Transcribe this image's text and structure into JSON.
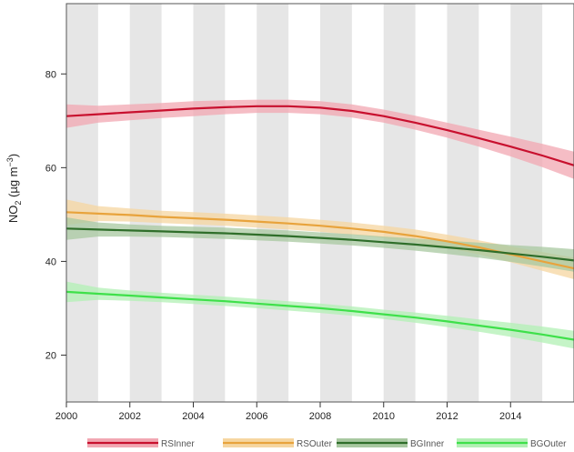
{
  "chart_data": {
    "type": "line",
    "title": "",
    "xlabel": "",
    "ylabel": {
      "main": "NO",
      "sub": "2",
      "unit_open": " (µg m",
      "unit_sup": "−3",
      "unit_close": ")"
    },
    "xlim": [
      2000,
      2016
    ],
    "ylim": [
      10,
      95
    ],
    "x_ticks": [
      2000,
      2002,
      2004,
      2006,
      2008,
      2010,
      2012,
      2014
    ],
    "x_tick_labels": [
      "2000",
      "2002",
      "2004",
      "2006",
      "2008",
      "2010",
      "2012",
      "2014"
    ],
    "y_ticks": [
      20,
      40,
      60,
      80
    ],
    "y_tick_labels": [
      "20",
      "40",
      "60",
      "80"
    ],
    "shaded_year_bands": [
      [
        2000,
        2001
      ],
      [
        2002,
        2003
      ],
      [
        2004,
        2005
      ],
      [
        2006,
        2007
      ],
      [
        2008,
        2009
      ],
      [
        2010,
        2011
      ],
      [
        2012,
        2013
      ],
      [
        2014,
        2015
      ]
    ],
    "grid": false,
    "legend_position": "bottom",
    "x": [
      2000,
      2001,
      2002,
      2003,
      2004,
      2005,
      2006,
      2007,
      2008,
      2009,
      2010,
      2011,
      2012,
      2013,
      2014,
      2015,
      2016
    ],
    "series": [
      {
        "name": "RSInner",
        "color": "#c8102e",
        "band_color": "#f2a7b2",
        "values": [
          71,
          71.4,
          71.8,
          72.2,
          72.6,
          72.9,
          73.1,
          73.1,
          72.8,
          72.1,
          71.0,
          69.6,
          68.0,
          66.3,
          64.5,
          62.6,
          60.5
        ],
        "lower": [
          68.5,
          69.6,
          70.1,
          70.6,
          71.0,
          71.4,
          71.7,
          71.7,
          71.4,
          70.7,
          69.6,
          68.1,
          66.4,
          64.5,
          62.4,
          60.1,
          57.6
        ],
        "upper": [
          73.5,
          73.2,
          73.5,
          73.8,
          74.2,
          74.4,
          74.5,
          74.5,
          74.2,
          73.5,
          72.4,
          71.1,
          69.6,
          68.1,
          66.6,
          65.1,
          63.4
        ]
      },
      {
        "name": "RSOuter",
        "color": "#e8a33c",
        "band_color": "#f6d6a0",
        "values": [
          50.5,
          50.2,
          49.9,
          49.5,
          49.2,
          48.9,
          48.5,
          48.1,
          47.6,
          47.0,
          46.3,
          45.4,
          44.3,
          43.0,
          41.5,
          40.0,
          38.5
        ],
        "lower": [
          47.8,
          48.6,
          48.5,
          48.2,
          47.9,
          47.6,
          47.2,
          46.8,
          46.3,
          45.7,
          45.0,
          44.0,
          42.9,
          41.5,
          39.8,
          38.0,
          36.2
        ],
        "upper": [
          53.2,
          51.8,
          51.3,
          50.8,
          50.5,
          50.2,
          49.8,
          49.4,
          48.9,
          48.3,
          47.6,
          46.8,
          45.7,
          44.5,
          43.2,
          42.0,
          40.8
        ]
      },
      {
        "name": "BGInner",
        "color": "#2f6e2a",
        "band_color": "#a8c8a0",
        "values": [
          47.0,
          46.8,
          46.6,
          46.4,
          46.2,
          46.0,
          45.7,
          45.4,
          45.0,
          44.6,
          44.1,
          43.6,
          43.0,
          42.4,
          41.7,
          41.0,
          40.2
        ],
        "lower": [
          44.6,
          45.3,
          45.3,
          45.2,
          45.0,
          44.8,
          44.5,
          44.2,
          43.8,
          43.4,
          42.9,
          42.3,
          41.6,
          40.8,
          39.9,
          38.9,
          37.8
        ],
        "upper": [
          49.4,
          48.3,
          47.9,
          47.6,
          47.4,
          47.2,
          46.9,
          46.6,
          46.2,
          45.8,
          45.3,
          44.9,
          44.4,
          44.0,
          43.5,
          43.1,
          42.6
        ]
      },
      {
        "name": "BGOuter",
        "color": "#3ee04a",
        "band_color": "#b2f0b4",
        "values": [
          33.5,
          33.1,
          32.7,
          32.3,
          31.9,
          31.5,
          31.0,
          30.5,
          30.0,
          29.4,
          28.7,
          28.0,
          27.2,
          26.3,
          25.4,
          24.4,
          23.3
        ],
        "lower": [
          31.3,
          31.8,
          31.6,
          31.3,
          30.9,
          30.5,
          30.0,
          29.5,
          29.0,
          28.4,
          27.7,
          26.9,
          26.0,
          25.0,
          23.9,
          22.7,
          21.4
        ],
        "upper": [
          35.7,
          34.4,
          33.8,
          33.3,
          32.9,
          32.5,
          32.0,
          31.5,
          31.0,
          30.4,
          29.7,
          29.1,
          28.4,
          27.6,
          26.9,
          26.1,
          25.2
        ]
      }
    ]
  }
}
